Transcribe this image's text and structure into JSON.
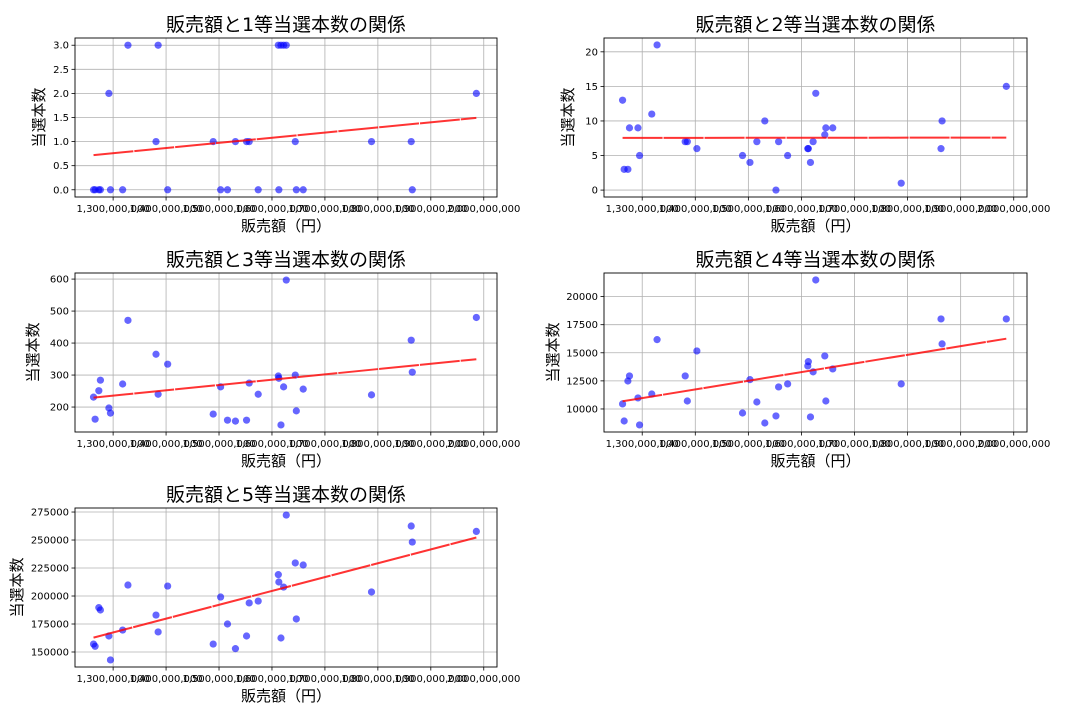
{
  "chart_data": {
    "type": "scatter",
    "x": [
      1263000000,
      1266000000,
      1273000000,
      1276000000,
      1292000000,
      1295000000,
      1318000000,
      1328000000,
      1381000000,
      1385000000,
      1403000000,
      1489000000,
      1503000000,
      1516000000,
      1531000000,
      1552000000,
      1557000000,
      1574000000,
      1612000000,
      1613000000,
      1617000000,
      1622000000,
      1627000000,
      1644000000,
      1646000000,
      1659000000,
      1788000000,
      1863000000,
      1865000000,
      1986000000
    ],
    "xlim": [
      1228000000,
      2025000000
    ],
    "xticks": [
      1300000000,
      1400000000,
      1500000000,
      1600000000,
      1700000000,
      1800000000,
      1900000000,
      2000000000
    ],
    "xticklabels": [
      "1,300,000,000",
      "1,400,000,000",
      "1,500,000,000",
      "1,600,000,000",
      "1,700,000,000",
      "1,800,000,000",
      "1,900,000,000",
      "2,000,000,000"
    ],
    "grid": true,
    "point_color": "#0000ff",
    "regression_color": "#ff0000",
    "plots": [
      {
        "title": "販売額と1等当選本数の関係",
        "xlabel": "販売額（円）",
        "ylabel": "当選本数",
        "ylim": [
          -0.15,
          3.15
        ],
        "yticks": [
          0,
          0.5,
          1,
          1.5,
          2,
          2.5,
          3
        ],
        "yticklabels": [
          "0.0",
          "0.5",
          "1.0",
          "1.5",
          "2.0",
          "2.5",
          "3.0"
        ],
        "y": [
          0,
          0,
          0,
          0,
          2,
          0,
          0,
          3,
          1,
          3,
          0,
          1,
          0,
          0,
          1,
          1,
          1,
          0,
          3,
          0,
          3,
          3,
          3,
          1,
          0,
          0,
          1,
          1,
          0,
          2
        ]
      },
      {
        "title": "販売額と2等当選本数の関係",
        "xlabel": "販売額（円）",
        "ylabel": "当選本数",
        "ylim": [
          -1,
          22
        ],
        "yticks": [
          0,
          5,
          10,
          15,
          20
        ],
        "yticklabels": [
          "0",
          "5",
          "10",
          "15",
          "20"
        ],
        "y": [
          13,
          3,
          3,
          9,
          9,
          5,
          11,
          21,
          7,
          7,
          6,
          5,
          4,
          7,
          10,
          0,
          7,
          5,
          6,
          6,
          4,
          7,
          14,
          8,
          9,
          9,
          1,
          6,
          10,
          15
        ]
      },
      {
        "title": "販売額と3等当選本数の関係",
        "xlabel": "販売額（円）",
        "ylabel": "当選本数",
        "ylim": [
          122,
          619
        ],
        "yticks": [
          200,
          300,
          400,
          500,
          600
        ],
        "yticklabels": [
          "200",
          "300",
          "400",
          "500",
          "600"
        ],
        "y": [
          231,
          162,
          251,
          284,
          197,
          181,
          272,
          471,
          365,
          240,
          334,
          178,
          263,
          159,
          156,
          159,
          275,
          240,
          297,
          290,
          144,
          263,
          597,
          300,
          188,
          256,
          238,
          409,
          309,
          480
        ]
      },
      {
        "title": "販売額と4等当選本数の関係",
        "xlabel": "販売額（円）",
        "ylabel": "当選本数",
        "ylim": [
          7950,
          22100
        ],
        "yticks": [
          10000,
          12500,
          15000,
          17500,
          20000
        ],
        "yticklabels": [
          "10000",
          "12500",
          "15000",
          "17500",
          "20000"
        ],
        "y": [
          10450,
          8930,
          12490,
          12940,
          10980,
          8580,
          11330,
          16170,
          12940,
          10710,
          15160,
          9640,
          12610,
          10620,
          8750,
          9380,
          11960,
          12230,
          13830,
          14210,
          9290,
          13300,
          21480,
          14720,
          10710,
          13560,
          12230,
          18010,
          15790,
          18010
        ]
      },
      {
        "title": "販売額と5等当選本数の関係",
        "xlabel": "販売額（円）",
        "ylabel": "当選本数",
        "ylim": [
          136600,
          278600
        ],
        "yticks": [
          150000,
          175000,
          200000,
          225000,
          250000,
          275000
        ],
        "yticklabels": [
          "150000",
          "175000",
          "200000",
          "225000",
          "250000",
          "275000"
        ],
        "y": [
          157100,
          155100,
          189600,
          187500,
          164300,
          142900,
          169600,
          209800,
          183000,
          167900,
          208900,
          157100,
          199100,
          175000,
          153000,
          164300,
          193800,
          195500,
          219100,
          212500,
          162500,
          208000,
          272300,
          229500,
          179500,
          227700,
          203600,
          262500,
          248200,
          257700
        ]
      }
    ]
  }
}
